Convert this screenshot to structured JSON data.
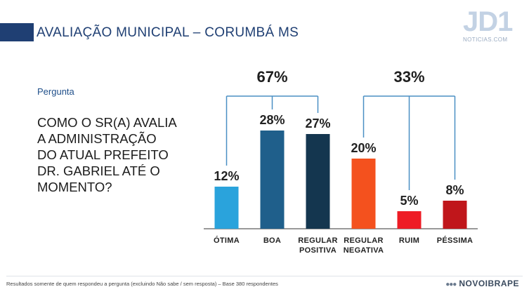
{
  "header": {
    "title": "AVALIAÇÃO MUNICIPAL – CORUMBÁ MS",
    "logo_text": "JD1",
    "logo_sub": "NOTICIAS.COM"
  },
  "question": {
    "label": "Pergunta",
    "text": "COMO O SR(A) AVALIA A ADMINISTRAÇÃO DO ATUAL PREFEITO DR. GABRIEL ATÉ O MOMENTO?"
  },
  "footer": {
    "note": "Resultados somente de quem respondeu a pergunta (excluindo Não sabe / sem resposta) – Base 380 respondentes",
    "brand": "NOVOIBRAPE"
  },
  "chart_data": {
    "type": "bar",
    "categories": [
      "ÓTIMA",
      "BOA",
      "REGULAR POSITIVA",
      "REGULAR NEGATIVA",
      "RUIM",
      "PÉSSIMA"
    ],
    "values": [
      12,
      28,
      27,
      20,
      5,
      8
    ],
    "value_labels": [
      "12%",
      "28%",
      "27%",
      "20%",
      "5%",
      "8%"
    ],
    "colors": [
      "#2aa3dc",
      "#1f5f8b",
      "#14364f",
      "#f4511e",
      "#ee1c25",
      "#c0161b"
    ],
    "groups": [
      {
        "label": "67%",
        "categories": [
          "ÓTIMA",
          "BOA",
          "REGULAR POSITIVA"
        ]
      },
      {
        "label": "33%",
        "categories": [
          "REGULAR NEGATIVA",
          "RUIM",
          "PÉSSIMA"
        ]
      }
    ],
    "bracket_color": "#4a8fc4",
    "ylim": [
      0,
      30
    ],
    "grid": false
  }
}
